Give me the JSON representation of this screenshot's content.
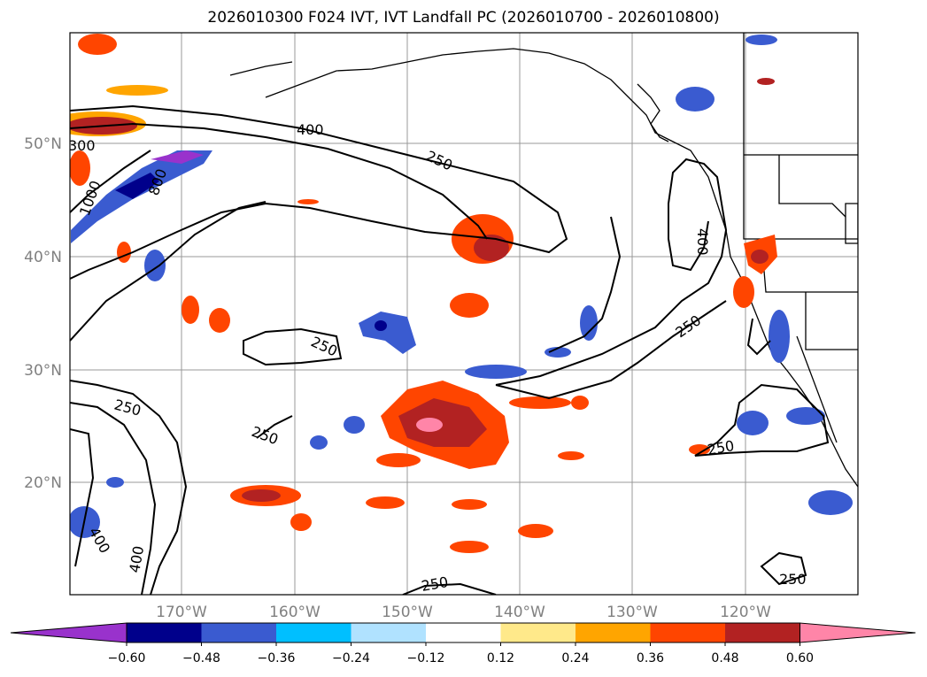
{
  "title": "2026010300 F024 IVT, IVT Landfall PC (2026010700 - 2026010800)",
  "map": {
    "lat_labels": [
      "50°N",
      "40°N",
      "30°N",
      "20°N"
    ],
    "lon_labels": [
      "170°W",
      "160°W",
      "150°W",
      "140°W",
      "130°W",
      "120°W"
    ],
    "contour_labels": [
      "400",
      "250",
      "250",
      "250",
      "250",
      "250",
      "250",
      "250",
      "400",
      "400",
      "1000",
      "800",
      "300"
    ]
  },
  "colorbar": {
    "ticks": [
      "−0.60",
      "−0.48",
      "−0.36",
      "−0.24",
      "−0.12",
      "0.12",
      "0.24",
      "0.36",
      "0.48",
      "0.60"
    ],
    "colors": [
      "#9932cc",
      "#00008b",
      "#3a5bd0",
      "#00bfff",
      "#b0e2ff",
      "#ffffff",
      "#ffe98a",
      "#ffa500",
      "#ff4500",
      "#b22222",
      "#ff85a8"
    ]
  }
}
